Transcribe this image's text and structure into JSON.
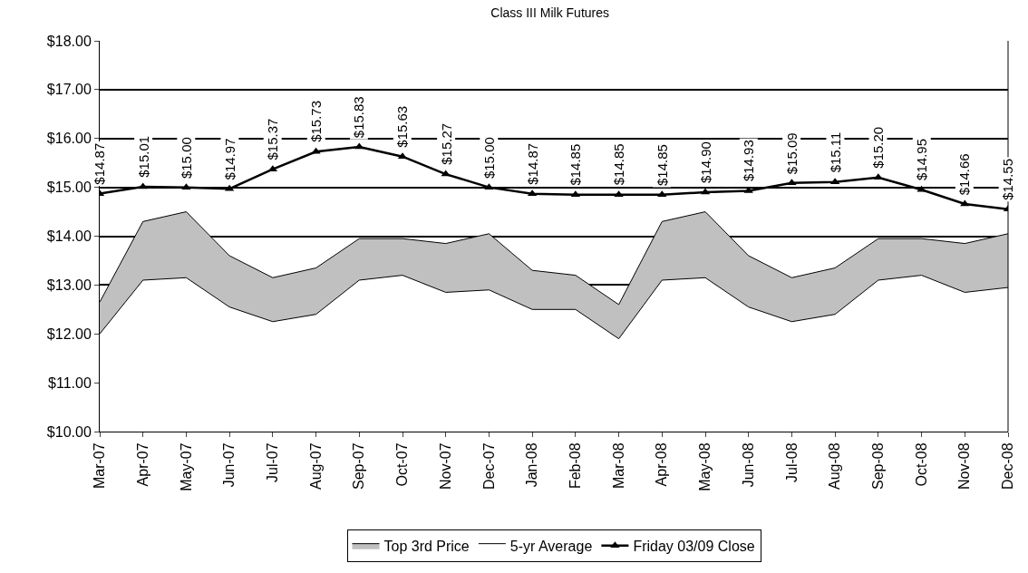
{
  "chart_data": {
    "type": "area",
    "title": "Class III Milk Futures",
    "categories": [
      "Mar-07",
      "Apr-07",
      "May-07",
      "Jun-07",
      "Jul-07",
      "Aug-07",
      "Sep-07",
      "Oct-07",
      "Nov-07",
      "Dec-07",
      "Jan-08",
      "Feb-08",
      "Mar-08",
      "Apr-08",
      "May-08",
      "Jun-08",
      "Jul-08",
      "Aug-08",
      "Sep-08",
      "Oct-08",
      "Nov-08",
      "Dec-08"
    ],
    "series": [
      {
        "name": "5-yr Average",
        "color": "#ffffff",
        "values": [
          12.0,
          13.1,
          13.15,
          12.55,
          12.25,
          12.4,
          13.1,
          13.2,
          12.85,
          12.9,
          12.5,
          12.5,
          11.9,
          13.1,
          13.15,
          12.55,
          12.25,
          12.4,
          13.1,
          13.2,
          12.85,
          12.95
        ]
      },
      {
        "name": "Top 3rd Price",
        "color": "#c0c0c0",
        "values": [
          12.65,
          14.3,
          14.5,
          13.6,
          13.15,
          13.35,
          13.95,
          13.95,
          13.85,
          14.05,
          13.3,
          13.2,
          12.6,
          14.3,
          14.5,
          13.6,
          13.15,
          13.35,
          13.95,
          13.95,
          13.85,
          14.05
        ]
      },
      {
        "name": "Friday 03/09 Close",
        "type": "line",
        "color": "#000000",
        "marker": "triangle",
        "values": [
          14.87,
          15.01,
          15.0,
          14.97,
          15.37,
          15.73,
          15.83,
          15.63,
          15.27,
          15.0,
          14.87,
          14.85,
          14.85,
          14.85,
          14.9,
          14.93,
          15.09,
          15.11,
          15.2,
          14.95,
          14.66,
          14.55
        ],
        "value_labels": [
          "$14.87",
          "$15.01",
          "$15.00",
          "$14.97",
          "$15.37",
          "$15.73",
          "$15.83",
          "$15.63",
          "$15.27",
          "$15.00",
          "$14.87",
          "$14.85",
          "$14.85",
          "$14.85",
          "$14.90",
          "$14.93",
          "$15.09",
          "$15.11",
          "$15.20",
          "$14.95",
          "$14.66",
          "$14.55"
        ]
      }
    ],
    "ylim": [
      10,
      18
    ],
    "yticks": [
      {
        "value": 10,
        "label": "$10.00"
      },
      {
        "value": 11,
        "label": "$11.00"
      },
      {
        "value": 12,
        "label": "$12.00"
      },
      {
        "value": 13,
        "label": "$13.00"
      },
      {
        "value": 14,
        "label": "$14.00"
      },
      {
        "value": 15,
        "label": "$15.00"
      },
      {
        "value": 16,
        "label": "$16.00"
      },
      {
        "value": 17,
        "label": "$17.00"
      },
      {
        "value": 18,
        "label": "$18.00"
      }
    ],
    "grid": "y",
    "legend": "bottom"
  }
}
